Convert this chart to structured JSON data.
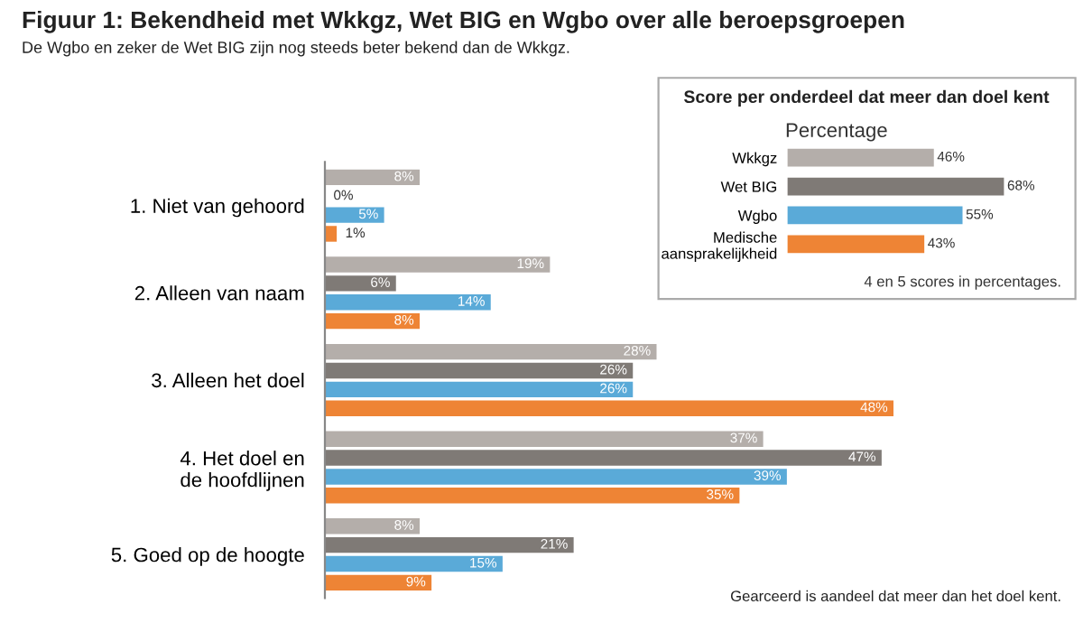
{
  "chart_data": [
    {
      "type": "bar",
      "orientation": "horizontal",
      "title": "Figuur 1: Bekendheid met Wkkgz, Wet BIG en Wgbo over alle beroepsgroepen",
      "subtitle": "De Wgbo en zeker de Wet BIG zijn nog steeds beter bekend dan de Wkkgz.",
      "annotations": [
        "Gearceerd is aandeel dat meer dan het doel kent."
      ],
      "categories": [
        "1. Niet van gehoord",
        "2. Alleen van naam",
        "3. Alleen het doel",
        "4. Het doel en\nde hoofdlijnen",
        "5. Goed op de hoogte"
      ],
      "series": [
        {
          "color": "#b4aeaa",
          "values": [
            8,
            19,
            28,
            37,
            8
          ],
          "value_labels": [
            "8%",
            "19%",
            "28%",
            "37%",
            "8%"
          ]
        },
        {
          "color": "#7f7a76",
          "values": [
            0,
            6,
            26,
            47,
            21
          ],
          "value_labels": [
            "0%",
            "6%",
            "26%",
            "47%",
            "21%"
          ]
        },
        {
          "color": "#5aaad8",
          "values": [
            5,
            14,
            26,
            39,
            15
          ],
          "value_labels": [
            "5%",
            "14%",
            "26%",
            "39%",
            "15%"
          ]
        },
        {
          "color": "#ee8435",
          "values": [
            1,
            8,
            48,
            35,
            9
          ],
          "value_labels": [
            "1%",
            "8%",
            "48%",
            "35%",
            "9%"
          ]
        }
      ]
    },
    {
      "type": "bar",
      "orientation": "horizontal",
      "title": "Score per onderdeel dat meer dan doel kent",
      "subtitle": "Percentage",
      "annotations": [
        "4 en 5 scores in percentages."
      ],
      "categories": [
        "Wkkgz",
        "Wet BIG",
        "Wgbo",
        "Medische\naansprakelijkheid"
      ],
      "values": [
        46,
        68,
        55,
        43
      ],
      "colors": [
        "#b4aeaa",
        "#7f7a76",
        "#5aaad8",
        "#ee8435"
      ],
      "value_labels": [
        "46%",
        "68%",
        "55%",
        "43%"
      ]
    }
  ]
}
